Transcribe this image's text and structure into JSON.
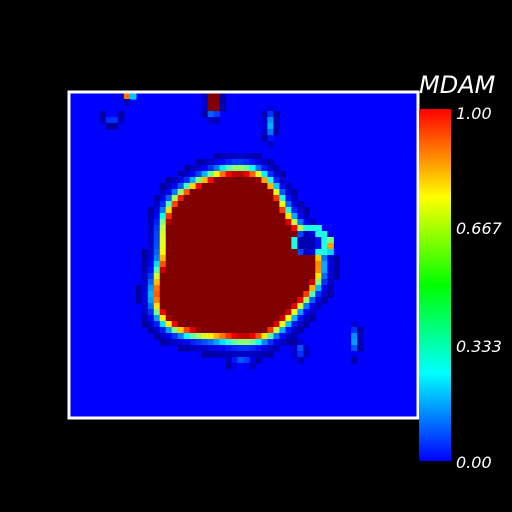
{
  "chart_data": {
    "type": "heatmap",
    "colorbar": {
      "title": "MDAM",
      "range": [
        0,
        1
      ],
      "ticks": [
        "1.00",
        "0.667",
        "0.333",
        "0.00"
      ],
      "tick_values": [
        1.0,
        0.667,
        0.333,
        0.0
      ],
      "colormap": "jet",
      "colormap_colors": [
        "#0000ff",
        "#00ffff",
        "#00ff00",
        "#ffff00",
        "#ff0000"
      ]
    },
    "frame_color": "#ffffff",
    "background_level": 0.0,
    "regions": [
      {
        "shape": "blob",
        "value": 1.0,
        "extent_x": [
          0.26,
          0.71
        ],
        "extent_y": [
          0.24,
          0.78
        ]
      },
      {
        "shape": "small-ring",
        "value": 0.35,
        "center": [
          0.72,
          0.46
        ]
      },
      {
        "shape": "small-patch",
        "value": 1.0,
        "center": [
          0.78,
          0.47
        ]
      },
      {
        "shape": "top-notch",
        "value": 1.0,
        "center": [
          0.44,
          0.02
        ]
      },
      {
        "shape": "top-notch",
        "value": 1.0,
        "center": [
          0.17,
          0.01
        ]
      },
      {
        "shape": "streak",
        "value": 0.3,
        "center": [
          0.58,
          0.12
        ]
      },
      {
        "shape": "streak",
        "value": 0.3,
        "center": [
          0.85,
          0.76
        ]
      },
      {
        "shape": "streak",
        "value": 0.3,
        "center": [
          0.13,
          0.08
        ]
      }
    ]
  }
}
